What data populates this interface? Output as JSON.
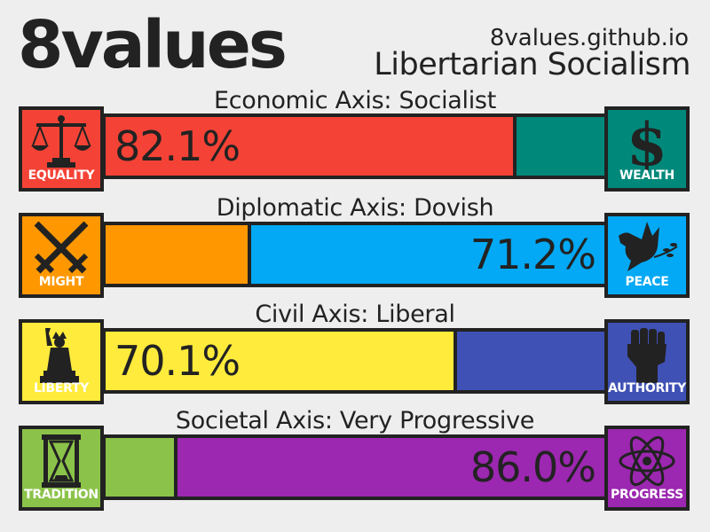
{
  "header": {
    "brand": "8values",
    "site": "8values.github.io",
    "ideology": "Libertarian Socialism"
  },
  "axes": [
    {
      "title": "Economic Axis: Socialist",
      "left": {
        "label": "EQUALITY",
        "icon": "scales-icon",
        "color": "#f44336"
      },
      "right": {
        "label": "WEALTH",
        "icon": "dollar-icon",
        "color": "#00897b"
      },
      "left_value": 82.1,
      "right_value": 17.9,
      "display": "82.1%",
      "display_side": "left"
    },
    {
      "title": "Diplomatic Axis: Dovish",
      "left": {
        "label": "MIGHT",
        "icon": "crossed-swords-icon",
        "color": "#ff9800"
      },
      "right": {
        "label": "PEACE",
        "icon": "dove-icon",
        "color": "#03a9f4"
      },
      "left_value": 28.8,
      "right_value": 71.2,
      "display": "71.2%",
      "display_side": "right"
    },
    {
      "title": "Civil Axis: Liberal",
      "left": {
        "label": "LIBERTY",
        "icon": "statue-of-liberty-icon",
        "color": "#ffeb3b"
      },
      "right": {
        "label": "AUTHORITY",
        "icon": "raised-fist-icon",
        "color": "#3f51b5"
      },
      "left_value": 70.1,
      "right_value": 29.9,
      "display": "70.1%",
      "display_side": "left"
    },
    {
      "title": "Societal Axis: Very Progressive",
      "left": {
        "label": "TRADITION",
        "icon": "hourglass-icon",
        "color": "#8bc34a"
      },
      "right": {
        "label": "PROGRESS",
        "icon": "atom-icon",
        "color": "#9c27b0"
      },
      "left_value": 14.0,
      "right_value": 86.0,
      "display": "86.0%",
      "display_side": "right"
    }
  ]
}
